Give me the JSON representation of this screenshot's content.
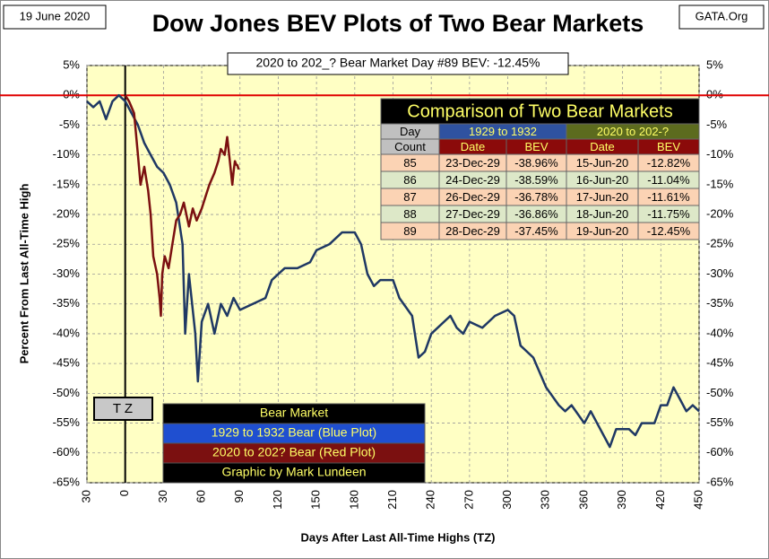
{
  "chart_data": {
    "type": "line",
    "title": "Dow Jones BEV Plots of Two Bear Markets",
    "date_label": "19 June 2020",
    "source": "GATA.Org",
    "subtitle": "2020 to 202_? Bear Market Day #89 BEV: -12.45%",
    "x_label": "Days After Last All-Time Highs (TZ)",
    "y_label": "Percent  From  Last  All-Time  High",
    "tz_label": "T Z",
    "xlim": [
      -30,
      450
    ],
    "xticks": [
      {
        "value": -30,
        "label": "30"
      },
      0,
      30,
      60,
      90,
      120,
      150,
      180,
      210,
      240,
      270,
      300,
      330,
      360,
      390,
      420,
      450
    ],
    "ylim": [
      -65,
      5
    ],
    "yticks": [
      {
        "value": 5,
        "label": "5%"
      },
      {
        "value": 0,
        "label": "0%"
      },
      {
        "value": -5,
        "label": "-5%"
      },
      {
        "value": -10,
        "label": "-10%"
      },
      {
        "value": -15,
        "label": "-15%"
      },
      {
        "value": -20,
        "label": "-20%"
      },
      {
        "value": -25,
        "label": "-25%"
      },
      {
        "value": -30,
        "label": "-30%"
      },
      {
        "value": -35,
        "label": "-35%"
      },
      {
        "value": -40,
        "label": "-40%"
      },
      {
        "value": -45,
        "label": "-45%"
      },
      {
        "value": -50,
        "label": "-50%"
      },
      {
        "value": -55,
        "label": "-55%"
      },
      {
        "value": -60,
        "label": "-60%"
      },
      {
        "value": -65,
        "label": "-65%"
      }
    ],
    "grid": true,
    "hline": 0,
    "vline": 0,
    "series": [
      {
        "name": "1929 to 1932 Bear (Blue Plot)",
        "color": "#1f3864",
        "legend_color": "#1f4fd0",
        "x": [
          -30,
          -25,
          -20,
          -15,
          -10,
          -5,
          0,
          5,
          10,
          15,
          20,
          25,
          30,
          35,
          40,
          45,
          47,
          50,
          55,
          57,
          60,
          65,
          70,
          75,
          80,
          85,
          90,
          100,
          110,
          115,
          125,
          135,
          145,
          150,
          160,
          170,
          180,
          185,
          190,
          195,
          200,
          210,
          215,
          225,
          230,
          235,
          240,
          245,
          255,
          260,
          265,
          270,
          280,
          290,
          300,
          305,
          310,
          320,
          330,
          340,
          345,
          350,
          360,
          365,
          375,
          380,
          385,
          395,
          400,
          405,
          415,
          420,
          425,
          430,
          435,
          440,
          445,
          450
        ],
        "values": [
          -1,
          -2,
          -1,
          -4,
          -1,
          0,
          -1,
          -3,
          -5,
          -8,
          -10,
          -12,
          -13,
          -15,
          -18,
          -25,
          -40,
          -30,
          -40,
          -48,
          -38,
          -35,
          -40,
          -35,
          -37,
          -34,
          -36,
          -35,
          -34,
          -31,
          -29,
          -29,
          -28,
          -26,
          -25,
          -23,
          -23,
          -25,
          -30,
          -32,
          -31,
          -31,
          -34,
          -37,
          -44,
          -43,
          -40,
          -39,
          -37,
          -39,
          -40,
          -38,
          -39,
          -37,
          -36,
          -37,
          -42,
          -44,
          -49,
          -52,
          -53,
          -52,
          -55,
          -53,
          -57,
          -59,
          -56,
          -56,
          -57,
          -55,
          -55,
          -52,
          -52,
          -49,
          -51,
          -53,
          -52,
          -53
        ]
      },
      {
        "name": "2020 to 202? Bear (Red Plot)",
        "color": "#7b1010",
        "legend_color": "#7b1010",
        "x": [
          0,
          3,
          7,
          10,
          12,
          15,
          18,
          20,
          22,
          25,
          27,
          28,
          29,
          31,
          34,
          37,
          40,
          43,
          46,
          50,
          53,
          56,
          60,
          63,
          66,
          70,
          73,
          75,
          78,
          80,
          82,
          84,
          85,
          86,
          87,
          88,
          89
        ],
        "values": [
          0,
          -1,
          -3,
          -10,
          -15,
          -12,
          -16,
          -20,
          -27,
          -30,
          -34,
          -37,
          -30,
          -27,
          -29,
          -25,
          -21,
          -20,
          -18,
          -22,
          -19,
          -21,
          -19,
          -17,
          -15,
          -13,
          -11,
          -9,
          -10,
          -7,
          -11,
          -15,
          -12.82,
          -11.04,
          -11.61,
          -11.75,
          -12.45
        ]
      }
    ],
    "legend_title": "Bear Market",
    "legend_credit": "Graphic by Mark Lundeen",
    "table": {
      "title": "Comparison of Two Bear Markets",
      "day_header": [
        "Day",
        "Count"
      ],
      "groups": [
        "1929 to 1932",
        "2020 to 202-?"
      ],
      "headers": [
        "Date",
        "BEV",
        "Date",
        "BEV"
      ],
      "rows": [
        [
          "85",
          "23-Dec-29",
          "-38.96%",
          "15-Jun-20",
          "-12.82%"
        ],
        [
          "86",
          "24-Dec-29",
          "-38.59%",
          "16-Jun-20",
          "-11.04%"
        ],
        [
          "87",
          "26-Dec-29",
          "-36.78%",
          "17-Jun-20",
          "-11.61%"
        ],
        [
          "88",
          "27-Dec-29",
          "-36.86%",
          "18-Jun-20",
          "-11.75%"
        ],
        [
          "89",
          "28-Dec-29",
          "-37.45%",
          "19-Jun-20",
          "-12.45%"
        ]
      ]
    }
  }
}
